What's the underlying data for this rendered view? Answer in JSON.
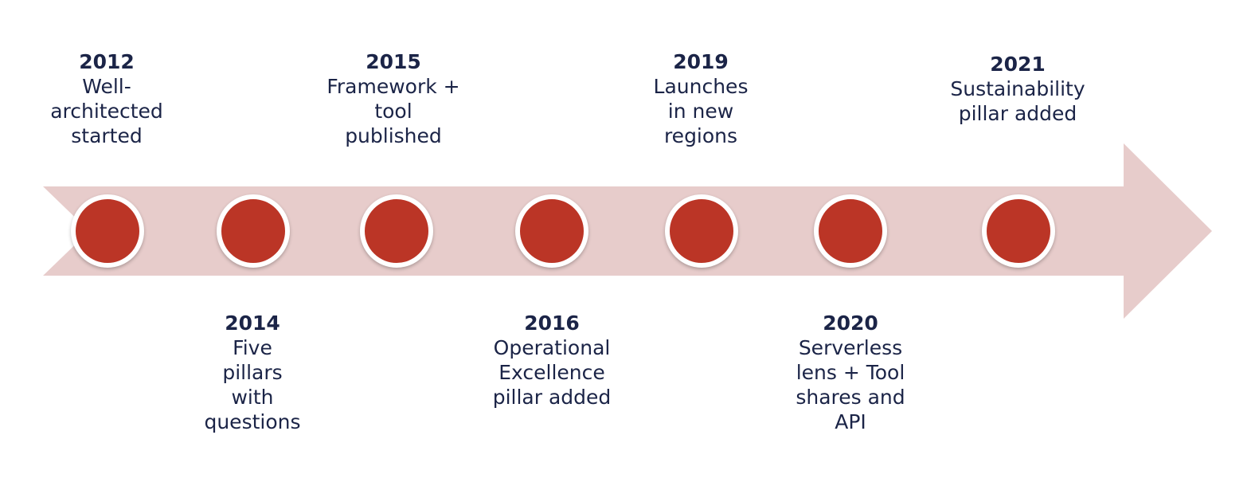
{
  "diagram": {
    "colors": {
      "arrow": "#e7cccb",
      "dot": "#bb3526",
      "dot_ring": "#ffffff",
      "text": "#1b2447"
    },
    "events": [
      {
        "year": "2012",
        "description": "Well-\narchitected\nstarted"
      },
      {
        "year": "2014",
        "description": "Five\npillars\nwith\nquestions"
      },
      {
        "year": "2015",
        "description": "Framework +\ntool\npublished"
      },
      {
        "year": "2016",
        "description": "Operational\nExcellence\npillar added"
      },
      {
        "year": "2019",
        "description": "Launches\nin new\nregions"
      },
      {
        "year": "2020",
        "description": "Serverless\nlens + Tool\nshares and\nAPI"
      },
      {
        "year": "2021",
        "description": "Sustainability\npillar added"
      }
    ]
  }
}
